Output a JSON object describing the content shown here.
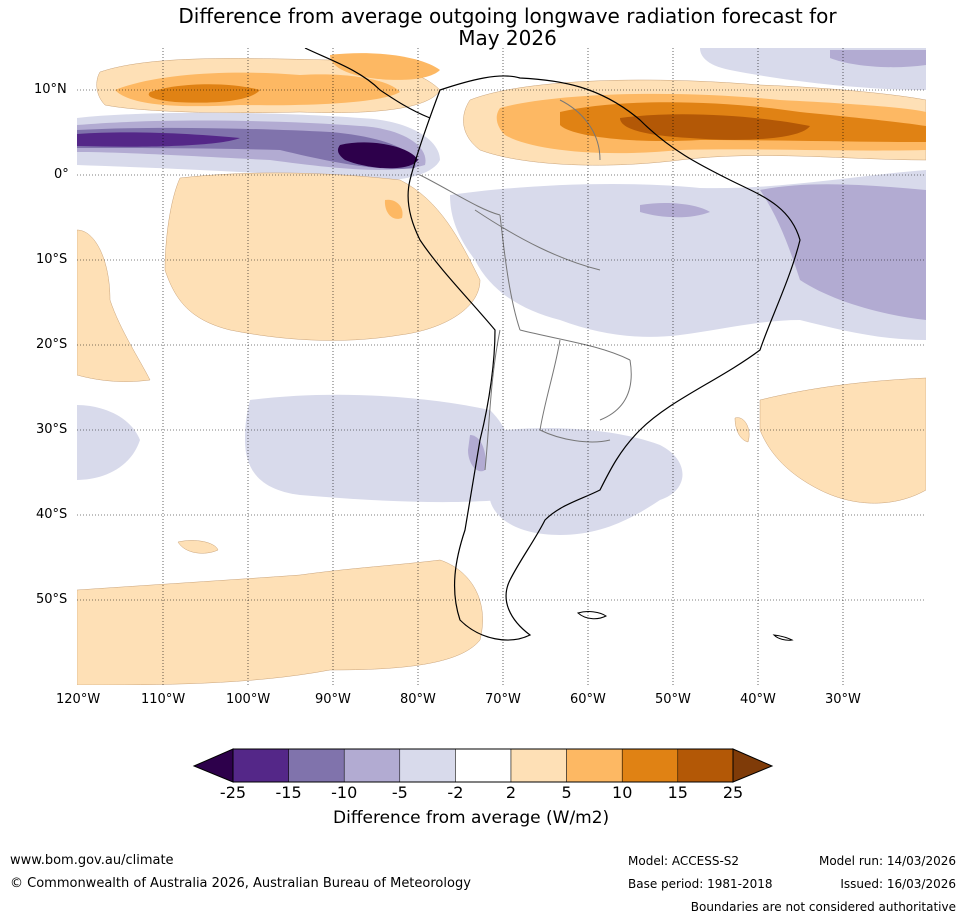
{
  "title": {
    "line1": "Difference from average outgoing longwave radiation forecast for",
    "line2": "May 2026"
  },
  "lat_labels": [
    "10°N",
    "0°",
    "10°S",
    "20°S",
    "30°S",
    "40°S",
    "50°S"
  ],
  "lon_labels": [
    "120°W",
    "110°W",
    "100°W",
    "90°W",
    "80°W",
    "70°W",
    "60°W",
    "50°W",
    "40°W",
    "30°W"
  ],
  "colorbar": {
    "ticks": [
      "-25",
      "-15",
      "-10",
      "-5",
      "-2",
      "2",
      "5",
      "10",
      "15",
      "25"
    ],
    "label": "Difference from average (W/m2)",
    "colors": {
      "below": "#2d004b",
      "c1": "#542788",
      "c2": "#8073ac",
      "c3": "#b2abd2",
      "c4": "#d8daeb",
      "c5": "#ffffff",
      "c6": "#fee0b6",
      "c7": "#fdb863",
      "c8": "#e08214",
      "c9": "#b35806",
      "above": "#7f3b08"
    }
  },
  "footer": {
    "website": "www.bom.gov.au/climate",
    "copyright": "© Commonwealth of Australia 2026, Australian Bureau of Meteorology",
    "model": "Model: ACCESS-S2",
    "base_period": "Base period: 1981-2018",
    "model_run": "Model run: 14/03/2026",
    "issued": "Issued: 16/03/2026",
    "disclaimer": "Boundaries are not considered authoritative"
  }
}
